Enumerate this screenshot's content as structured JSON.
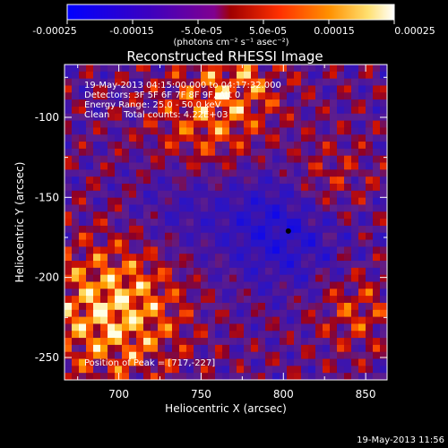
{
  "colorbar": {
    "ticks": [
      "-0.00025",
      "-0.00015",
      "-5.0e-05",
      "5.0e-05",
      "0.00015",
      "0.00025"
    ],
    "ticks_inner": [
      "-5.0e-05",
      "5.0e-05"
    ],
    "unit_label": "(photons cm⁻² s⁻¹ asec⁻²)",
    "range": [
      -0.00025,
      0.00025
    ],
    "colors": [
      "#0000ff",
      "#3b00c8",
      "#7a00a8",
      "#b00000",
      "#ff4000",
      "#ff9a00",
      "#ffe070",
      "#ffffff"
    ]
  },
  "footer": {
    "date": "19-May-2013 11:56"
  },
  "chart_data": {
    "type": "heatmap",
    "title": "Reconstructed RHESSI Image",
    "xlabel": "Heliocentric X (arcsec)",
    "ylabel": "Heliocentric Y (arcsec)",
    "xlim": [
      667,
      863
    ],
    "ylim": [
      -264,
      -67
    ],
    "xticks": [
      700,
      750,
      800,
      850
    ],
    "xtick_labels": [
      "700",
      "750",
      "800",
      "850"
    ],
    "yticks": [
      -100,
      -150,
      -200,
      -250
    ],
    "ytick_labels": [
      "-100",
      "-150",
      "-200",
      "-250"
    ],
    "annotations": {
      "line1": "19-May-2013 04:15:00.000 to 04:17:32.000",
      "line2": "Detectors: 3F 5F 6F 7F 8F 9F, Att 0",
      "line3": "Energy Range: 25.0 - 50.0 keV",
      "line4": "Clean     Total counts: 4.22E+03",
      "peak": "Position of Peak = [717,-227]"
    },
    "peak_position": [
      717,
      -227
    ],
    "grid": false,
    "legend": "colorbar-top"
  }
}
